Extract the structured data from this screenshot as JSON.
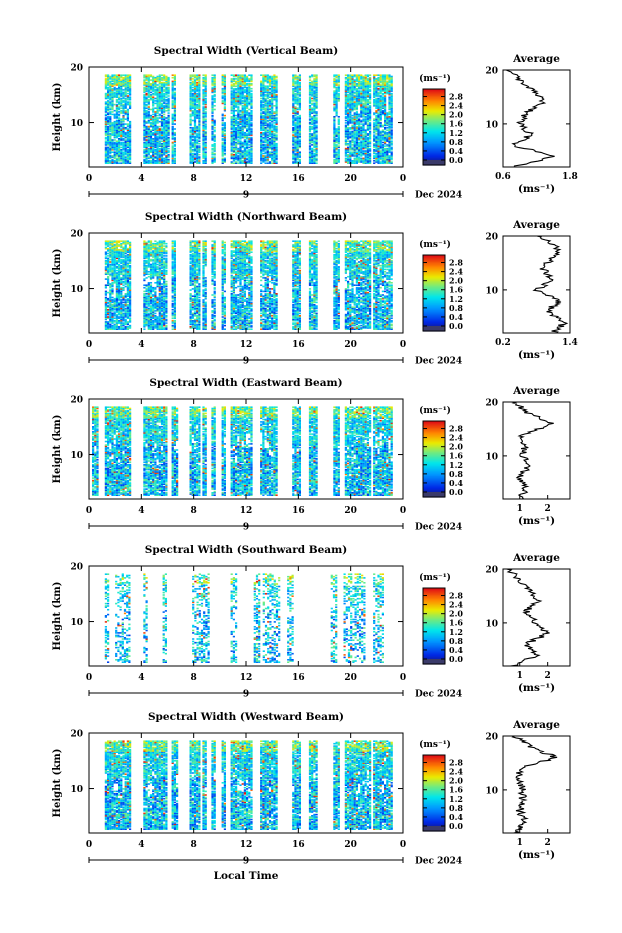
{
  "figure": {
    "xlabel": "Local Time",
    "date_label": "Dec 2024",
    "height_label": "Height (km)",
    "colorbar_unit": "(ms⁻¹)",
    "average_title": "Average",
    "average_xlabel": "(ms⁻¹)"
  },
  "chart_data": [
    {
      "type": "heatmap",
      "title": "Spectral Width (Vertical Beam)",
      "xlabel": "Local Time",
      "ylabel": "Height (km)",
      "x_ticks": [
        "0",
        "4",
        "8",
        "12",
        "16",
        "20",
        "0"
      ],
      "x_day_label": "9",
      "y_ticks": [
        "10",
        "20"
      ],
      "ylim_km": [
        2,
        20
      ],
      "xlim_hours": [
        0,
        24
      ],
      "colorbar": {
        "unit": "(ms⁻¹)",
        "ticks": [
          "0.0",
          "0.4",
          "0.8",
          "1.2",
          "1.6",
          "2.0",
          "2.4",
          "2.8"
        ],
        "range": [
          0,
          3.0
        ]
      },
      "data_bands_hours": [
        [
          1.0,
          3.0
        ],
        [
          4.0,
          5.9
        ],
        [
          6.2,
          6.5
        ],
        [
          7.6,
          8.3
        ],
        [
          8.6,
          8.9
        ],
        [
          9.3,
          9.6
        ],
        [
          10.1,
          10.4
        ],
        [
          10.8,
          12.4
        ],
        [
          13.1,
          14.4
        ],
        [
          15.6,
          16.2
        ],
        [
          16.9,
          17.5
        ],
        [
          18.8,
          19.3
        ],
        [
          19.7,
          21.7
        ],
        [
          21.9,
          23.4
        ]
      ],
      "average_profile": {
        "xlabel": "(ms⁻¹)",
        "x_ticks": [
          "0.6",
          "1.8"
        ],
        "xlim": [
          0.6,
          1.8
        ],
        "y_ticks": [
          "10",
          "20"
        ],
        "heights_km": [
          2,
          4,
          6,
          8,
          10,
          12,
          14,
          16,
          18,
          20
        ],
        "values": [
          0.8,
          1.5,
          0.8,
          1.1,
          0.9,
          1.0,
          1.3,
          1.2,
          0.9,
          0.7
        ]
      }
    },
    {
      "type": "heatmap",
      "title": "Spectral Width (Northward Beam)",
      "xlabel": "Local Time",
      "ylabel": "Height (km)",
      "x_ticks": [
        "0",
        "4",
        "8",
        "12",
        "16",
        "20",
        "0"
      ],
      "x_day_label": "9",
      "y_ticks": [
        "10",
        "20"
      ],
      "ylim_km": [
        2,
        20
      ],
      "xlim_hours": [
        0,
        24
      ],
      "colorbar": {
        "unit": "(ms⁻¹)",
        "ticks": [
          "0.0",
          "0.4",
          "0.8",
          "1.2",
          "1.6",
          "2.0",
          "2.4",
          "2.8"
        ],
        "range": [
          0,
          3.0
        ]
      },
      "data_bands_hours": [
        [
          1.0,
          3.0
        ],
        [
          4.0,
          5.8
        ],
        [
          6.2,
          6.5
        ],
        [
          7.6,
          8.4
        ],
        [
          8.6,
          8.9
        ],
        [
          9.3,
          9.6
        ],
        [
          10.1,
          10.4
        ],
        [
          10.8,
          12.4
        ],
        [
          13.1,
          14.4
        ],
        [
          15.6,
          16.2
        ],
        [
          16.9,
          17.5
        ],
        [
          18.8,
          19.3
        ],
        [
          19.7,
          21.7
        ],
        [
          21.9,
          23.4
        ]
      ],
      "average_profile": {
        "xlabel": "(ms⁻¹)",
        "x_ticks": [
          "0.2",
          "1.4"
        ],
        "xlim": [
          0.2,
          1.4
        ],
        "y_ticks": [
          "10",
          "20"
        ],
        "heights_km": [
          2,
          4,
          6,
          8,
          10,
          12,
          14,
          16,
          18,
          20
        ],
        "values": [
          1.1,
          1.3,
          1.0,
          1.2,
          0.8,
          1.1,
          0.9,
          1.1,
          1.2,
          0.8
        ]
      }
    },
    {
      "type": "heatmap",
      "title": "Spectral Width (Eastward Beam)",
      "xlabel": "Local Time",
      "ylabel": "Height (km)",
      "x_ticks": [
        "0",
        "4",
        "8",
        "12",
        "16",
        "20",
        "0"
      ],
      "x_day_label": "9",
      "y_ticks": [
        "10",
        "20"
      ],
      "ylim_km": [
        2,
        20
      ],
      "xlim_hours": [
        0,
        24
      ],
      "colorbar": {
        "unit": "(ms⁻¹)",
        "ticks": [
          "0.0",
          "0.4",
          "0.8",
          "1.2",
          "1.6",
          "2.0",
          "2.4",
          "2.8"
        ],
        "range": [
          0,
          3.0
        ]
      },
      "data_bands_hours": [
        [
          0.0,
          0.5
        ],
        [
          1.0,
          3.0
        ],
        [
          4.0,
          5.8
        ],
        [
          6.2,
          6.6
        ],
        [
          7.6,
          8.4
        ],
        [
          8.6,
          8.9
        ],
        [
          9.3,
          9.6
        ],
        [
          10.1,
          10.4
        ],
        [
          10.8,
          12.4
        ],
        [
          13.1,
          14.4
        ],
        [
          15.6,
          16.2
        ],
        [
          16.9,
          17.5
        ],
        [
          18.8,
          19.3
        ],
        [
          19.7,
          21.7
        ],
        [
          21.9,
          23.4
        ]
      ],
      "average_profile": {
        "xlabel": "(ms⁻¹)",
        "x_ticks": [
          "1",
          "2"
        ],
        "xlim": [
          0.4,
          2.8
        ],
        "y_ticks": [
          "10",
          "20"
        ],
        "heights_km": [
          2,
          4,
          6,
          8,
          10,
          12,
          14,
          16,
          18,
          20
        ],
        "values": [
          1.0,
          1.2,
          1.0,
          1.3,
          1.1,
          1.2,
          1.1,
          2.2,
          1.3,
          0.8
        ]
      }
    },
    {
      "type": "heatmap",
      "title": "Spectral Width (Southward Beam)",
      "xlabel": "Local Time",
      "ylabel": "Height (km)",
      "x_ticks": [
        "0",
        "4",
        "8",
        "12",
        "16",
        "20",
        "0"
      ],
      "x_day_label": "9",
      "y_ticks": [
        "10",
        "20"
      ],
      "ylim_km": [
        2,
        20
      ],
      "xlim_hours": [
        0,
        24
      ],
      "colorbar": {
        "unit": "(ms⁻¹)",
        "ticks": [
          "0.0",
          "0.4",
          "0.8",
          "1.2",
          "1.6",
          "2.0",
          "2.4",
          "2.8"
        ],
        "range": [
          0,
          3.0
        ]
      },
      "data_bands_hours": [
        [
          1.0,
          1.3
        ],
        [
          1.8,
          3.0
        ],
        [
          4.0,
          4.2
        ],
        [
          5.5,
          5.8
        ],
        [
          7.8,
          9.0
        ],
        [
          10.8,
          11.2
        ],
        [
          12.6,
          13.0
        ],
        [
          13.3,
          14.5
        ],
        [
          15.2,
          15.6
        ],
        [
          18.6,
          19.1
        ],
        [
          19.6,
          21.2
        ],
        [
          21.9,
          22.6
        ]
      ],
      "average_profile": {
        "xlabel": "(ms⁻¹)",
        "x_ticks": [
          "1",
          "2"
        ],
        "xlim": [
          0.4,
          2.8
        ],
        "y_ticks": [
          "10",
          "20"
        ],
        "heights_km": [
          2,
          4,
          6,
          8,
          10,
          12,
          14,
          16,
          18,
          20
        ],
        "values": [
          0.8,
          1.6,
          1.2,
          2.0,
          1.6,
          1.2,
          1.7,
          1.4,
          1.0,
          0.6
        ]
      }
    },
    {
      "type": "heatmap",
      "title": "Spectral Width (Westward Beam)",
      "xlabel": "Local Time",
      "ylabel": "Height (km)",
      "x_ticks": [
        "0",
        "4",
        "8",
        "12",
        "16",
        "20",
        "0"
      ],
      "x_day_label": "9",
      "y_ticks": [
        "10",
        "20"
      ],
      "ylim_km": [
        2,
        20
      ],
      "xlim_hours": [
        0,
        24
      ],
      "colorbar": {
        "unit": "(ms⁻¹)",
        "ticks": [
          "0.0",
          "0.4",
          "0.8",
          "1.2",
          "1.6",
          "2.0",
          "2.4",
          "2.8"
        ],
        "range": [
          0,
          3.0
        ]
      },
      "data_bands_hours": [
        [
          1.0,
          3.0
        ],
        [
          4.0,
          5.8
        ],
        [
          6.2,
          6.6
        ],
        [
          7.6,
          8.4
        ],
        [
          8.6,
          8.9
        ],
        [
          9.3,
          9.6
        ],
        [
          10.1,
          10.4
        ],
        [
          10.8,
          12.4
        ],
        [
          13.1,
          14.4
        ],
        [
          15.6,
          16.2
        ],
        [
          16.9,
          17.5
        ],
        [
          18.8,
          19.3
        ],
        [
          19.7,
          21.7
        ],
        [
          21.9,
          23.4
        ]
      ],
      "average_profile": {
        "xlabel": "(ms⁻¹)",
        "x_ticks": [
          "1",
          "2"
        ],
        "xlim": [
          0.4,
          2.8
        ],
        "y_ticks": [
          "10",
          "20"
        ],
        "heights_km": [
          2,
          4,
          6,
          8,
          10,
          12,
          14,
          16,
          18,
          20
        ],
        "values": [
          0.9,
          1.2,
          1.0,
          1.1,
          1.1,
          1.0,
          1.0,
          2.3,
          1.4,
          0.8
        ]
      }
    }
  ]
}
